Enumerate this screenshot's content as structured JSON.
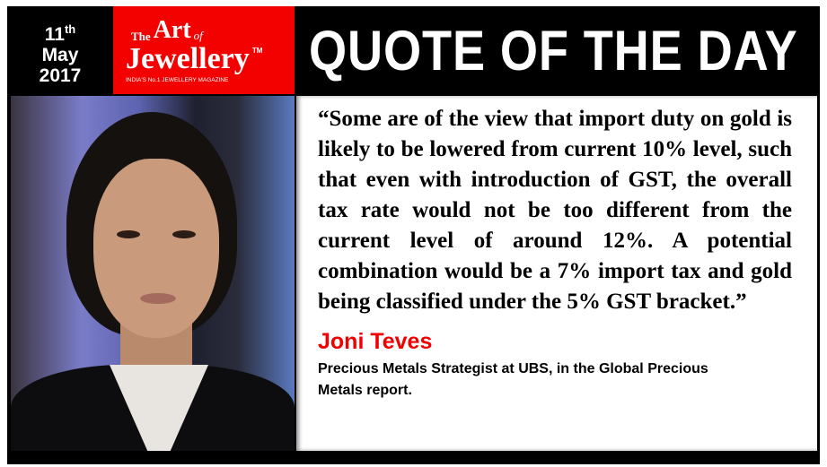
{
  "date": {
    "day": "11",
    "suffix": "th",
    "month": "May",
    "year": "2017"
  },
  "logo": {
    "the": "The",
    "art": "Art",
    "of": "of",
    "jewellery": "Jewellery",
    "tm": "TM",
    "tagline": "INDIA'S No.1 JEWELLERY MAGAZINE"
  },
  "title": "QUOTE OF THE DAY",
  "quote": "“Some are of the view that import duty on gold is likely to be lowered from current 10% level, such that even with introduction of GST, the overall tax rate would not be too different from the current level of around 12%. A potential combination would be a 7% import tax and gold being classified under the 5% GST bracket.”",
  "author": {
    "name": "Joni Teves",
    "role": "Precious Metals Strategist at UBS, in the Global Precious Metals report."
  },
  "colors": {
    "brand_red": "#f30000",
    "frame": "#000000"
  }
}
